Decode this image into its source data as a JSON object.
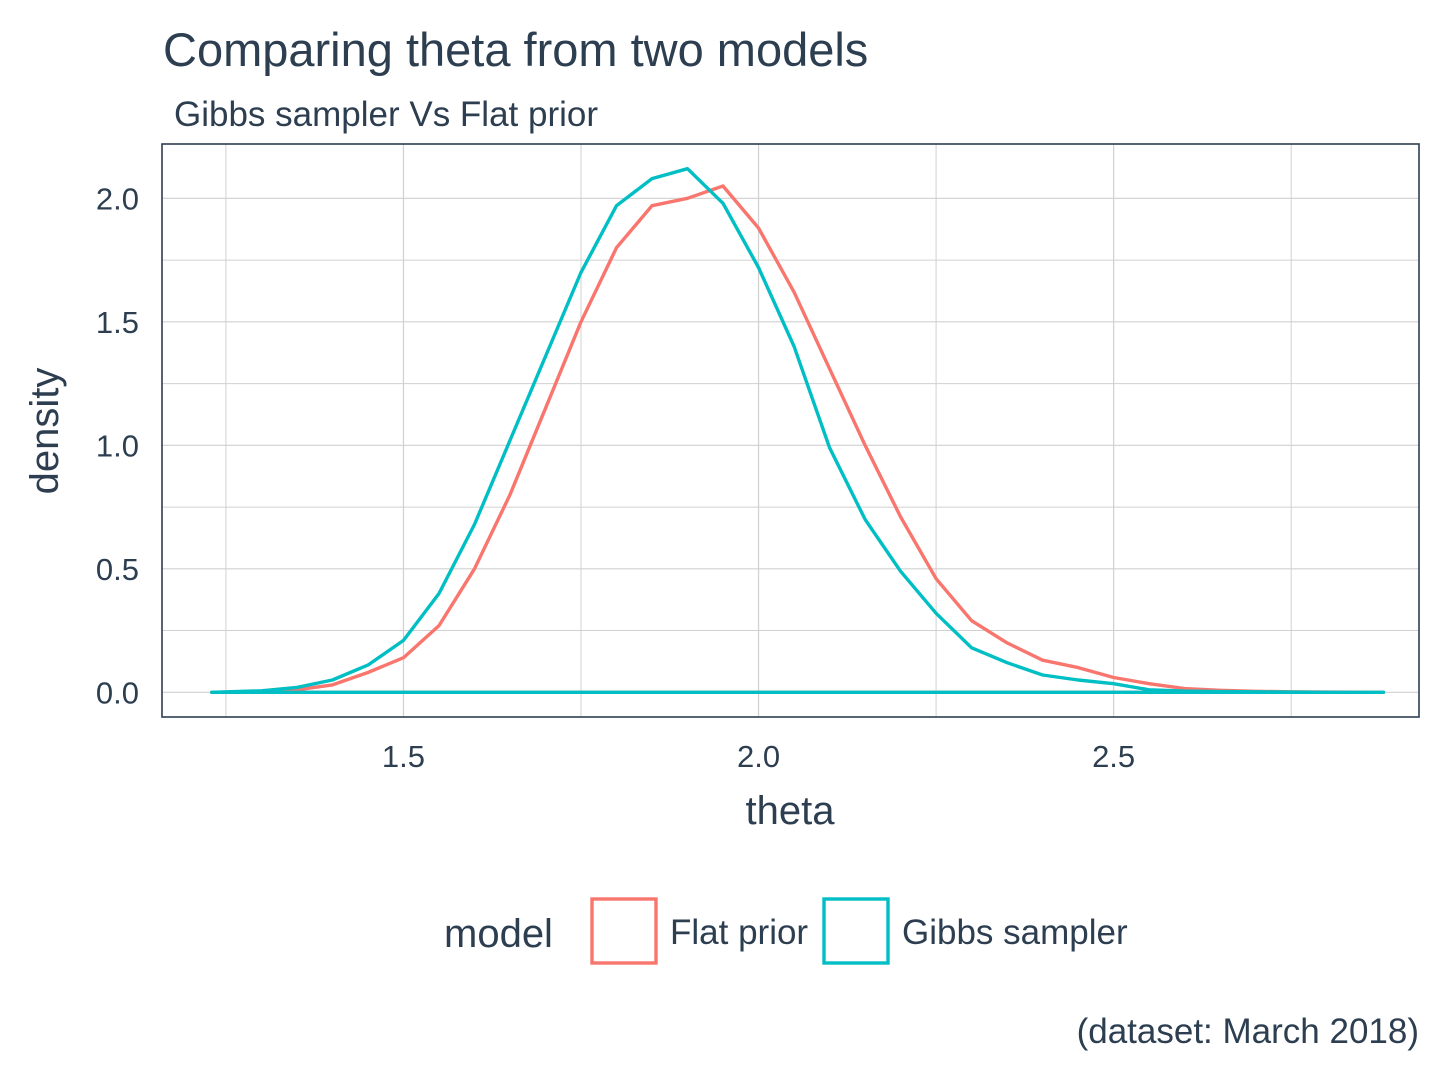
{
  "chart_data": {
    "type": "line",
    "title": "Comparing theta from two models",
    "subtitle": "Gibbs sampler Vs Flat prior",
    "xlabel": "theta",
    "ylabel": "density",
    "caption": "(dataset: March 2018)",
    "xlim": [
      1.16,
      2.93
    ],
    "ylim": [
      -0.1,
      2.22
    ],
    "xticks": [
      1.5,
      2.0,
      2.5
    ],
    "xtick_labels": [
      "1.5",
      "2.0",
      "2.5"
    ],
    "yticks": [
      0.0,
      0.5,
      1.0,
      1.5,
      2.0
    ],
    "ytick_labels": [
      "0.0",
      "0.5",
      "1.0",
      "1.5",
      "2.0"
    ],
    "grid": true,
    "legend": {
      "title": "model",
      "position": "bottom"
    },
    "series": [
      {
        "name": "Flat prior",
        "color": "#F8766D",
        "x": [
          1.23,
          1.3,
          1.35,
          1.4,
          1.45,
          1.5,
          1.55,
          1.6,
          1.65,
          1.7,
          1.75,
          1.8,
          1.85,
          1.9,
          1.95,
          2.0,
          2.05,
          2.1,
          2.15,
          2.2,
          2.25,
          2.3,
          2.35,
          2.4,
          2.45,
          2.5,
          2.55,
          2.6,
          2.65,
          2.7,
          2.75,
          2.8,
          2.88
        ],
        "values": [
          0.0,
          0.003,
          0.01,
          0.03,
          0.08,
          0.14,
          0.27,
          0.5,
          0.8,
          1.15,
          1.5,
          1.8,
          1.97,
          2.0,
          2.05,
          1.88,
          1.62,
          1.31,
          1.0,
          0.71,
          0.46,
          0.29,
          0.2,
          0.13,
          0.1,
          0.06,
          0.035,
          0.015,
          0.008,
          0.004,
          0.002,
          0.001,
          0.0
        ]
      },
      {
        "name": "Gibbs sampler",
        "color": "#00BFC4",
        "x": [
          1.23,
          1.3,
          1.35,
          1.4,
          1.45,
          1.5,
          1.55,
          1.6,
          1.65,
          1.7,
          1.75,
          1.8,
          1.85,
          1.9,
          1.95,
          2.0,
          2.05,
          2.1,
          2.15,
          2.2,
          2.25,
          2.3,
          2.35,
          2.4,
          2.45,
          2.5,
          2.55,
          2.6,
          2.65,
          2.7,
          2.75,
          2.8,
          2.88
        ],
        "values": [
          0.0,
          0.006,
          0.02,
          0.05,
          0.11,
          0.21,
          0.4,
          0.68,
          1.02,
          1.36,
          1.7,
          1.97,
          2.08,
          2.12,
          1.98,
          1.72,
          1.4,
          0.99,
          0.7,
          0.49,
          0.32,
          0.18,
          0.12,
          0.07,
          0.05,
          0.035,
          0.01,
          0.005,
          0.003,
          0.002,
          0.001,
          0.0,
          0.0
        ]
      }
    ]
  }
}
